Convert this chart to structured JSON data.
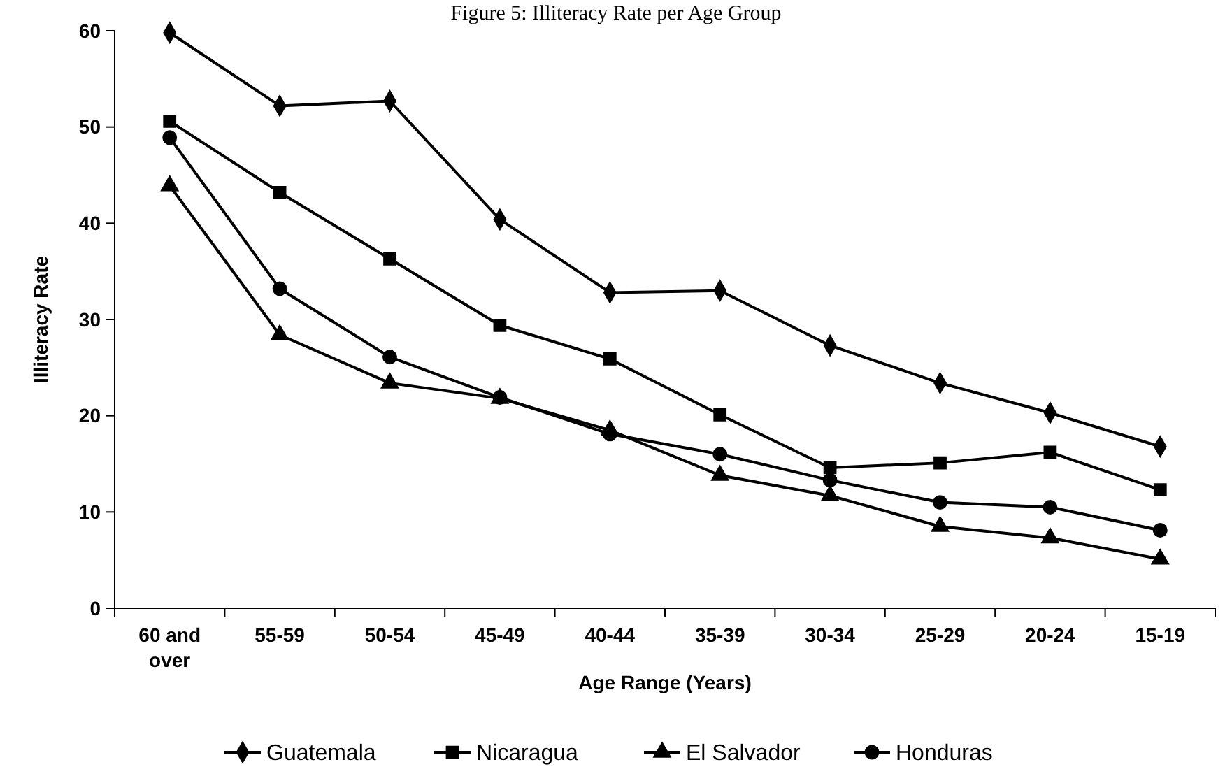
{
  "chart_data": {
    "type": "line",
    "title": "Figure 5: Illiteracy Rate per Age Group",
    "xlabel": "Age Range (Years)",
    "ylabel": "Illiteracy Rate",
    "categories": [
      "60 and over",
      "55-59",
      "50-54",
      "45-49",
      "40-44",
      "35-39",
      "30-34",
      "25-29",
      "20-24",
      "15-19"
    ],
    "ylim": [
      0,
      60
    ],
    "yticks": [
      0,
      10,
      20,
      30,
      40,
      50,
      60
    ],
    "grid": false,
    "legend": "bottom",
    "line_style": "solid",
    "series": [
      {
        "name": "Guatemala",
        "color": "#000000",
        "marker": "diamond",
        "values": [
          59.8,
          52.2,
          52.7,
          40.4,
          32.8,
          33.0,
          27.3,
          23.4,
          20.3,
          16.8
        ]
      },
      {
        "name": "Nicaragua",
        "color": "#000000",
        "marker": "square",
        "values": [
          50.6,
          43.2,
          36.3,
          29.4,
          25.9,
          20.1,
          14.6,
          15.1,
          16.2,
          12.3
        ]
      },
      {
        "name": "El Salvador",
        "color": "#000000",
        "marker": "triangle",
        "values": [
          43.9,
          28.4,
          23.4,
          21.8,
          18.5,
          13.8,
          11.7,
          8.5,
          7.3,
          5.1
        ]
      },
      {
        "name": "Honduras",
        "color": "#000000",
        "marker": "circle",
        "values": [
          48.9,
          33.2,
          26.1,
          21.9,
          18.1,
          16.0,
          13.3,
          11.0,
          10.5,
          8.1
        ]
      }
    ]
  }
}
